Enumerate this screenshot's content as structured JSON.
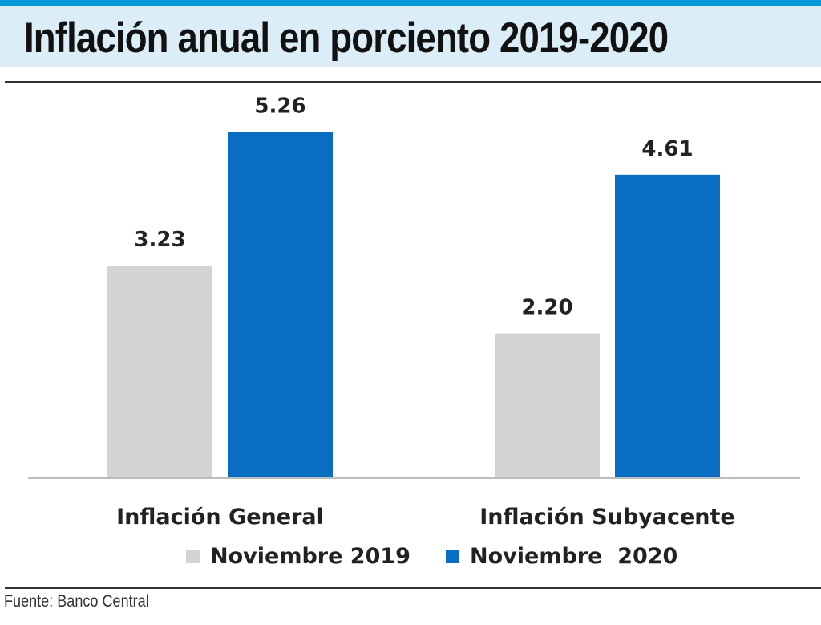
{
  "header": {
    "title": "Inflación anual en porciento 2019-2020"
  },
  "footer": {
    "source": "Fuente: Banco Central"
  },
  "colors": {
    "accent_stripe": "#0099d8",
    "title_band": "#dbeef8",
    "series_2019": "#d3d3d3",
    "series_2020": "#0a6dc4"
  },
  "chart_data": {
    "type": "bar",
    "title": "Inflación anual en porciento 2019-2020",
    "categories": [
      "Inflación General",
      "Inflación Subyacente"
    ],
    "series": [
      {
        "name": "Noviembre 2019",
        "values": [
          3.23,
          2.2
        ],
        "labels": [
          "3.23",
          "2.20"
        ],
        "color": "#d3d3d3"
      },
      {
        "name": "Noviembre  2020",
        "values": [
          5.26,
          4.61
        ],
        "labels": [
          "5.26",
          "4.61"
        ],
        "color": "#0a6dc4"
      }
    ],
    "ylim": [
      0,
      6.4
    ],
    "grid": false,
    "legend": "bottom",
    "xlabel": "",
    "ylabel": ""
  }
}
